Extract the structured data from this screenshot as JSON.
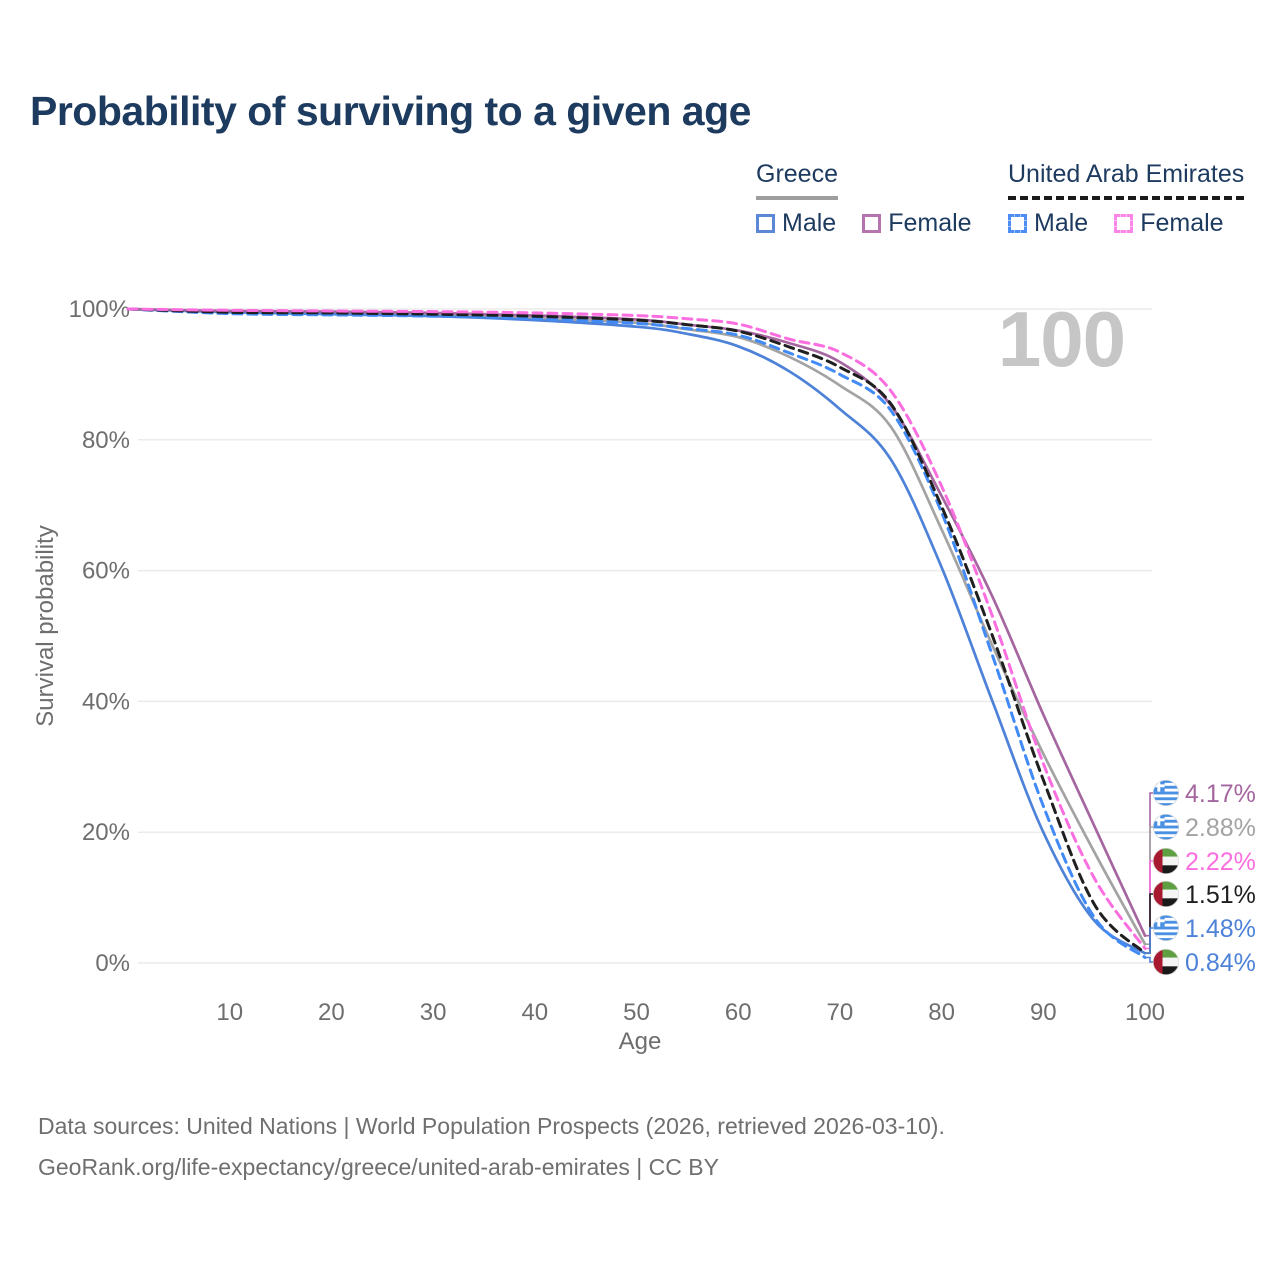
{
  "page": {
    "title": "Probability of surviving to a given age",
    "watermark_age": "100"
  },
  "legend": {
    "groups": [
      {
        "label": "Greece",
        "underline_style": "solid",
        "underline_color": "#9e9e9e",
        "items": [
          {
            "label": "Male",
            "color": "#5b87d5",
            "dashed": false
          },
          {
            "label": "Female",
            "color": "#b574ae",
            "dashed": false
          }
        ]
      },
      {
        "label": "United Arab Emirates",
        "underline_style": "dashed",
        "underline_color": "#1a1a1a",
        "items": [
          {
            "label": "Male",
            "color": "#4d8df5",
            "dashed": true
          },
          {
            "label": "Female",
            "color": "#fb86e8",
            "dashed": true
          }
        ]
      }
    ]
  },
  "chart_data": {
    "type": "line",
    "title": "Probability of surviving to a given age",
    "xlabel": "Age",
    "ylabel": "Survival probability",
    "xlim": [
      0,
      100
    ],
    "ylim": [
      0,
      100
    ],
    "grid": "horizontal",
    "legend_position": "top-right",
    "x_ticks": [
      10,
      20,
      30,
      40,
      50,
      60,
      70,
      80,
      90,
      100
    ],
    "y_ticks": [
      "0%",
      "20%",
      "40%",
      "60%",
      "80%",
      "100%"
    ],
    "age_marker": "100",
    "x": [
      0,
      10,
      20,
      30,
      40,
      50,
      55,
      60,
      65,
      70,
      75,
      80,
      85,
      90,
      95,
      100
    ],
    "series": [
      {
        "id": "greece-both",
        "name": "Greece",
        "sex": "both",
        "color": "#a3a3a3",
        "dash": false,
        "values": [
          100,
          99.6,
          99.4,
          99.1,
          98.6,
          97.9,
          96.9,
          95.7,
          92.7,
          88.3,
          82.0,
          66.3,
          48.5,
          32.0,
          17.0,
          2.88
        ]
      },
      {
        "id": "greece-male",
        "name": "Greece Male",
        "sex": "male",
        "color": "#4d82d8",
        "dash": false,
        "values": [
          100,
          99.5,
          99.2,
          98.9,
          98.3,
          97.3,
          96.2,
          94.3,
          90.5,
          84.7,
          77.0,
          60.5,
          40.0,
          20.0,
          6.5,
          1.48
        ]
      },
      {
        "id": "greece-female",
        "name": "Greece Female",
        "sex": "female",
        "color": "#a566a0",
        "dash": false,
        "values": [
          100,
          99.7,
          99.6,
          99.4,
          99.0,
          98.4,
          97.6,
          96.7,
          94.8,
          91.9,
          85.3,
          71.4,
          56.0,
          38.0,
          21.0,
          4.17
        ]
      },
      {
        "id": "uae-male",
        "name": "United Arab Emirates Male",
        "sex": "male",
        "color": "#428af5",
        "dash": true,
        "values": [
          100,
          99.3,
          99.1,
          98.9,
          98.5,
          97.8,
          97.0,
          96.0,
          93.3,
          90.0,
          84.5,
          68.9,
          47.0,
          24.0,
          7.0,
          0.84
        ]
      },
      {
        "id": "uae-both",
        "name": "United Arab Emirates",
        "sex": "both",
        "color": "#1f1f1f",
        "dash": true,
        "values": [
          100,
          99.5,
          99.4,
          99.2,
          98.9,
          98.3,
          97.6,
          96.6,
          94.2,
          91.1,
          85.5,
          69.8,
          50.0,
          28.0,
          9.0,
          1.51
        ]
      },
      {
        "id": "uae-female",
        "name": "United Arab Emirates Female",
        "sex": "female",
        "color": "#fb6ee0",
        "dash": true,
        "values": [
          100,
          99.8,
          99.7,
          99.6,
          99.4,
          99.0,
          98.5,
          97.7,
          95.4,
          93.4,
          87.5,
          72.9,
          53.0,
          30.5,
          13.0,
          2.22
        ]
      }
    ],
    "end_labels": [
      {
        "series": "greece-female",
        "flag": "greece",
        "label": "4.17%",
        "value": 4.17,
        "color": "#a566a0"
      },
      {
        "series": "greece-both",
        "flag": "greece",
        "label": "2.88%",
        "value": 2.88,
        "color": "#a3a3a3"
      },
      {
        "series": "uae-female",
        "flag": "uae",
        "label": "2.22%",
        "value": 2.22,
        "color": "#fb6ee0"
      },
      {
        "series": "uae-both",
        "flag": "uae",
        "label": "1.51%",
        "value": 1.51,
        "color": "#1f1f1f"
      },
      {
        "series": "greece-male",
        "flag": "greece",
        "label": "1.48%",
        "value": 1.48,
        "color": "#4d82d8"
      },
      {
        "series": "uae-male",
        "flag": "uae",
        "label": "0.84%",
        "value": 0.84,
        "color": "#4d82d8"
      }
    ]
  },
  "footer": {
    "line1": "Data sources: United Nations | World Population Prospects (2026, retrieved 2026-03-10).",
    "line2": "GeoRank.org/life-expectancy/greece/united-arab-emirates | CC BY"
  }
}
